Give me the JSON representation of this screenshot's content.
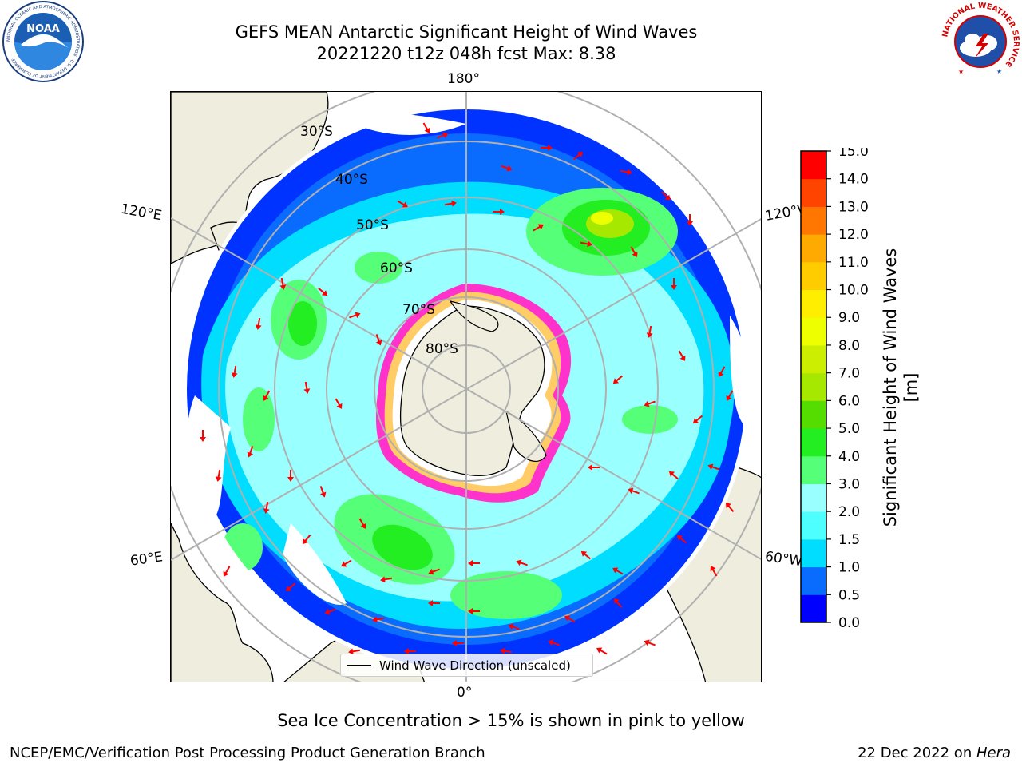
{
  "title": {
    "line1": "GEFS MEAN Antarctic Significant Height of Wind Waves",
    "line2": "20221220 t12z 048h fcst    Max: 8.38"
  },
  "logos": {
    "left": {
      "name": "noaa-logo",
      "text": "NOAA",
      "ring_text": "NATIONAL OCEANIC AND ATMOSPHERIC ADMINISTRATION · U.S. DEPARTMENT OF COMMERCE"
    },
    "right": {
      "name": "nws-logo",
      "ring_text": "NATIONAL WEATHER SERVICE"
    }
  },
  "map": {
    "projection": "south-polar-stereographic",
    "longitude_labels": {
      "top": "180°",
      "bottom": "0°",
      "upper_left": "120°E",
      "upper_right": "120°W",
      "lower_left": "60°E",
      "lower_right": "60°W"
    },
    "latitude_labels": [
      "30°S",
      "40°S",
      "50°S",
      "60°S",
      "70°S",
      "80°S"
    ],
    "legend_entry": "Wind Wave Direction (unscaled)",
    "arrow_color": "#ff0000",
    "land_color": "#efedde",
    "sea_ice_colors": [
      "#ff33cc",
      "#ff99ff",
      "#ffcc66",
      "#ffff99"
    ]
  },
  "colorbar": {
    "label": "Significant Height of Wind Waves [m]",
    "ticks": [
      "0.0",
      "0.5",
      "1.0",
      "1.5",
      "2.0",
      "3.0",
      "4.0",
      "5.0",
      "6.0",
      "7.0",
      "8.0",
      "9.0",
      "10.0",
      "11.0",
      "12.0",
      "13.0",
      "14.0",
      "15.0"
    ],
    "colors": [
      "#0000ff",
      "#0a6cff",
      "#00ddff",
      "#4dffff",
      "#99ffff",
      "#55ff77",
      "#22ee22",
      "#55dd00",
      "#a6e800",
      "#ccee00",
      "#eeff00",
      "#ffee00",
      "#ffcc00",
      "#ffaa00",
      "#ff7700",
      "#ff4400",
      "#ff0000"
    ]
  },
  "caption": "Sea Ice Concentration > 15% is shown in pink to yellow",
  "footer": {
    "left": "NCEP/EMC/Verification Post Processing Product Generation Branch",
    "right_date": "22 Dec 2022 on ",
    "right_host": "Hera"
  }
}
